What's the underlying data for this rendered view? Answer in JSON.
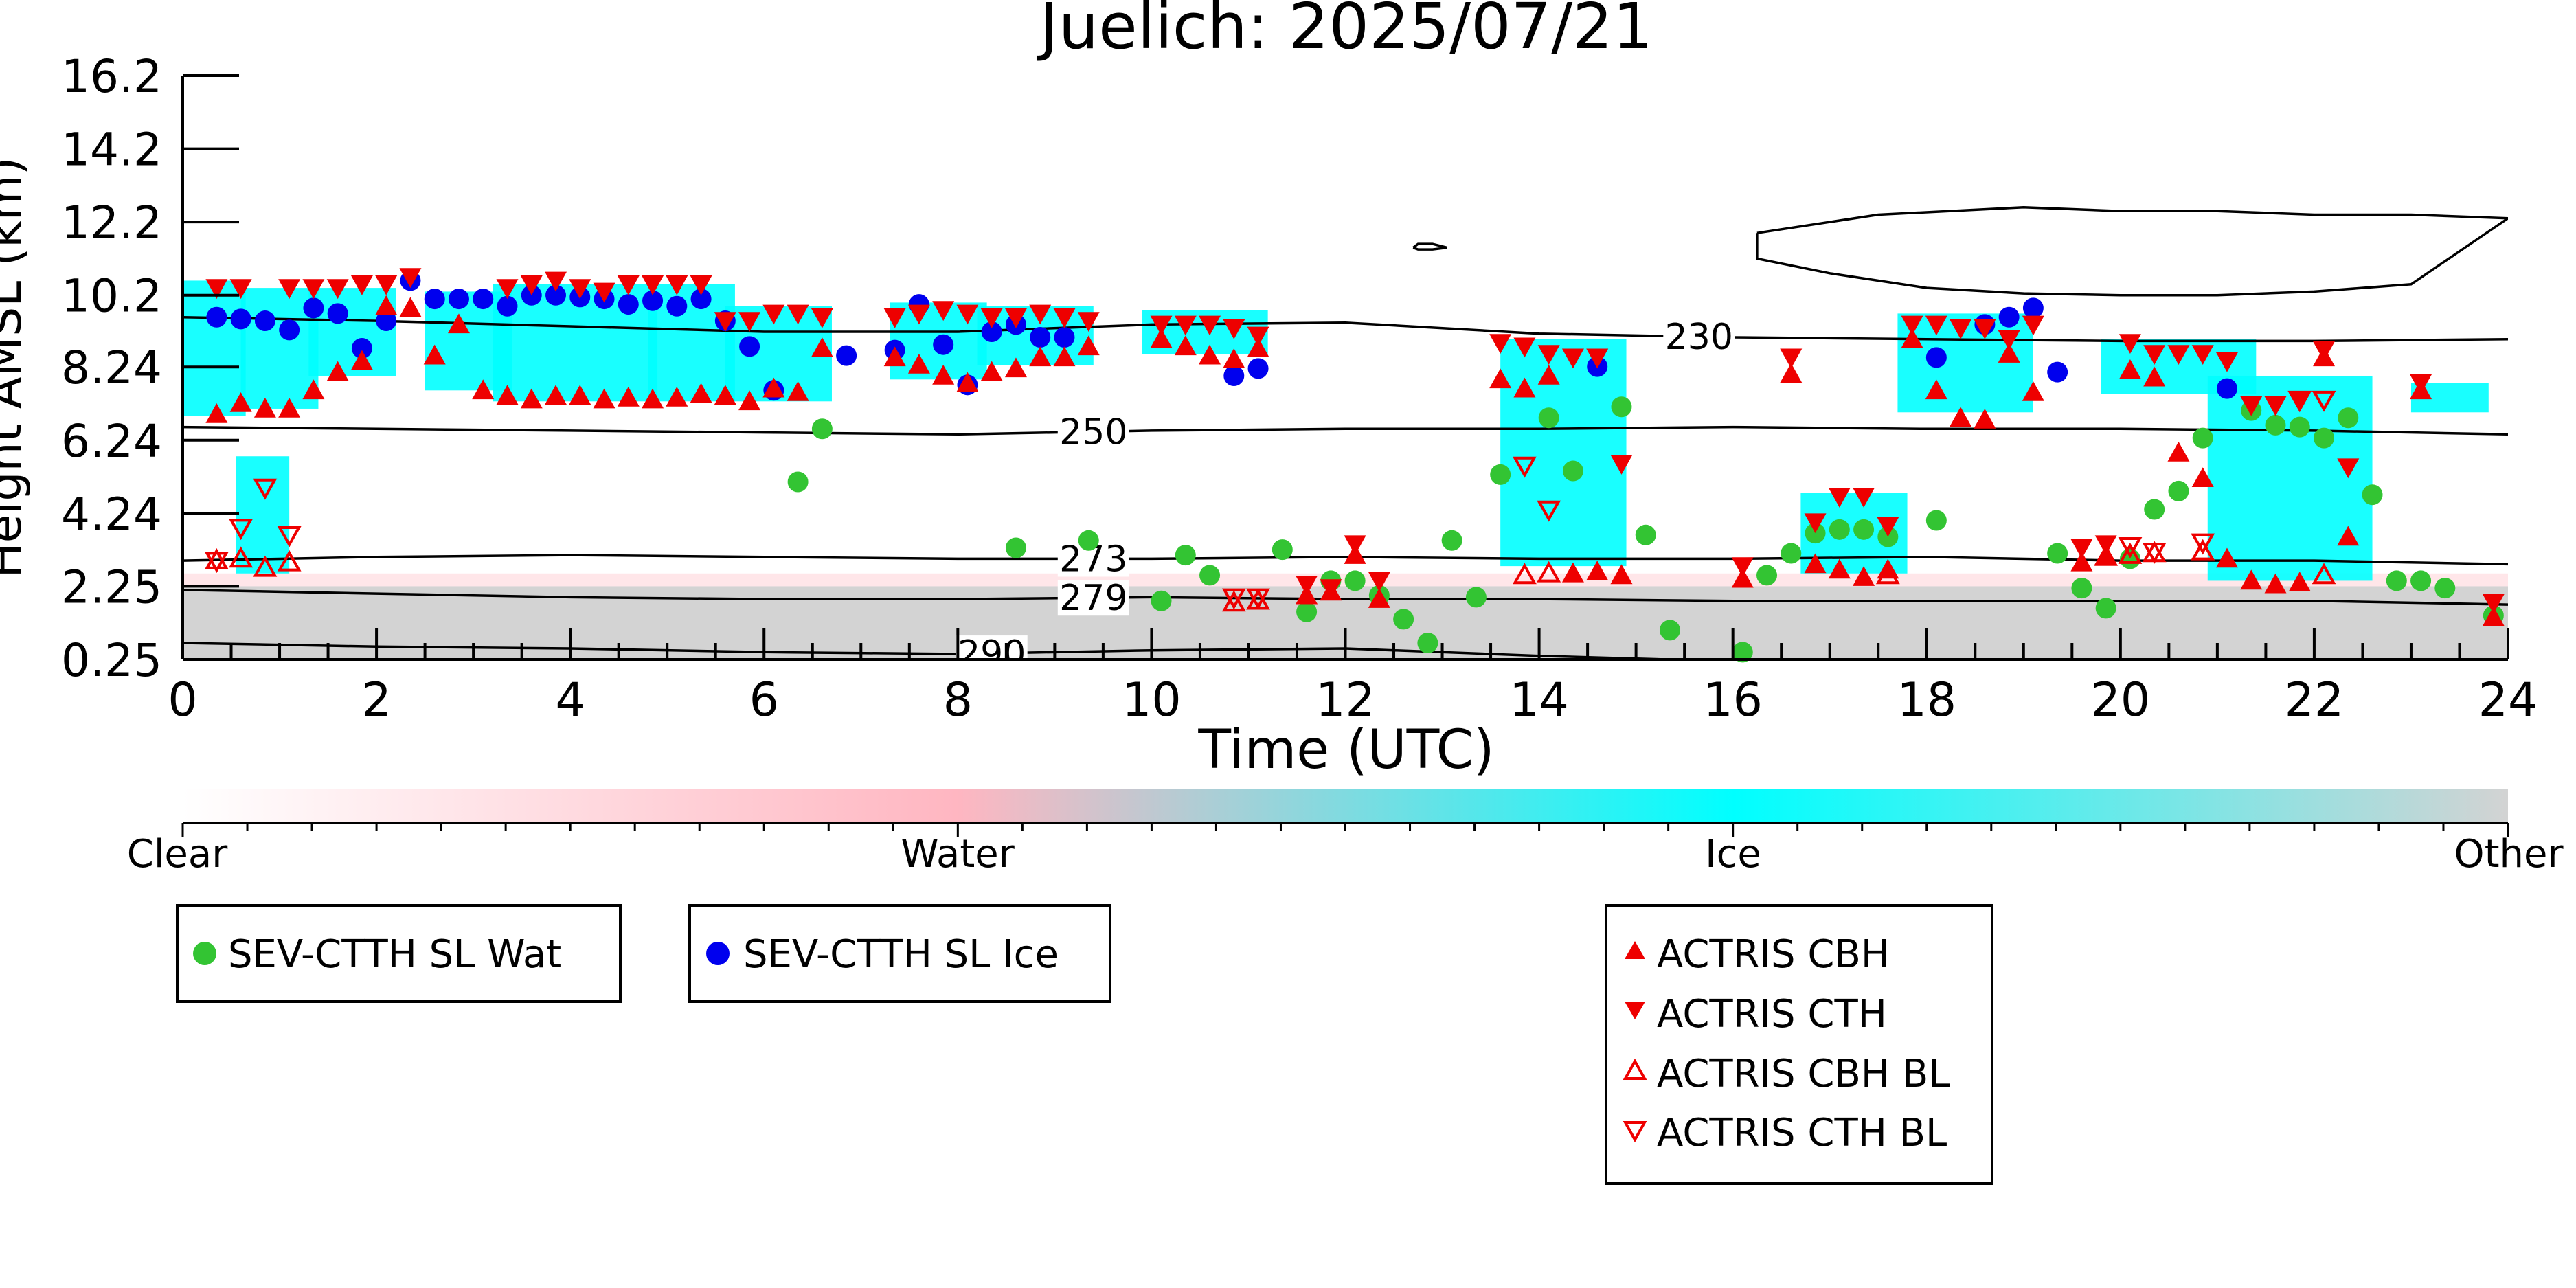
{
  "chart_data": {
    "type": "scatter",
    "title": "Juelich: 2025/07/21",
    "xlabel": "Time (UTC)",
    "ylabel": "Height AMSL (km)",
    "xlim": [
      0,
      24
    ],
    "ylim": [
      0.25,
      16.2
    ],
    "x_ticks": [
      0,
      2,
      4,
      6,
      8,
      10,
      12,
      14,
      16,
      18,
      20,
      22,
      24
    ],
    "y_ticks": [
      0.25,
      2.25,
      4.24,
      6.24,
      8.24,
      10.2,
      12.2,
      14.2,
      16.2
    ],
    "y_tick_labels": [
      "0.25",
      "2.25",
      "4.24",
      "6.24",
      "8.24",
      "10.2",
      "12.2",
      "14.2",
      "16.2"
    ],
    "background_classification": {
      "ice_regions": [
        {
          "x0": 0.0,
          "x1": 0.65,
          "y0": 6.9,
          "y1": 10.6
        },
        {
          "x0": 0.6,
          "x1": 1.4,
          "y0": 7.1,
          "y1": 10.4
        },
        {
          "x0": 1.3,
          "x1": 2.2,
          "y0": 8.0,
          "y1": 10.4
        },
        {
          "x0": 2.5,
          "x1": 3.4,
          "y0": 7.6,
          "y1": 10.3
        },
        {
          "x0": 3.2,
          "x1": 4.9,
          "y0": 7.3,
          "y1": 10.5
        },
        {
          "x0": 4.8,
          "x1": 5.7,
          "y0": 7.3,
          "y1": 10.5
        },
        {
          "x0": 5.6,
          "x1": 6.7,
          "y0": 7.3,
          "y1": 9.9
        },
        {
          "x0": 7.3,
          "x1": 8.3,
          "y0": 7.9,
          "y1": 10.0
        },
        {
          "x0": 8.2,
          "x1": 9.4,
          "y0": 8.3,
          "y1": 9.9
        },
        {
          "x0": 9.9,
          "x1": 11.2,
          "y0": 8.6,
          "y1": 9.8
        },
        {
          "x0": 13.6,
          "x1": 14.9,
          "y0": 2.8,
          "y1": 9.0
        },
        {
          "x0": 16.7,
          "x1": 17.8,
          "y0": 2.6,
          "y1": 4.8
        },
        {
          "x0": 17.7,
          "x1": 19.1,
          "y0": 7.0,
          "y1": 9.7
        },
        {
          "x0": 19.8,
          "x1": 21.4,
          "y0": 7.5,
          "y1": 9.0
        },
        {
          "x0": 20.9,
          "x1": 22.6,
          "y0": 2.4,
          "y1": 8.0
        },
        {
          "x0": 0.55,
          "x1": 1.1,
          "y0": 2.6,
          "y1": 5.8
        },
        {
          "x0": 23.0,
          "x1": 23.8,
          "y0": 7.0,
          "y1": 7.8
        }
      ],
      "other_regions": [
        {
          "x0": 0.0,
          "x1": 24.0,
          "y0": 0.25,
          "y1": 2.25
        }
      ]
    },
    "temperature_contours": [
      {
        "label": "230",
        "label_x": 15.65,
        "x": [
          0,
          2,
          4,
          6,
          8,
          10,
          12,
          14,
          16,
          18,
          20,
          22,
          24
        ],
        "y": [
          9.6,
          9.5,
          9.35,
          9.2,
          9.2,
          9.4,
          9.45,
          9.15,
          9.05,
          9.0,
          8.95,
          8.95,
          9.0
        ]
      },
      {
        "label": "250",
        "label_x": 9.4,
        "x": [
          0,
          2,
          4,
          6,
          8,
          10,
          12,
          14,
          16,
          18,
          20,
          22,
          24
        ],
        "y": [
          6.6,
          6.55,
          6.5,
          6.45,
          6.4,
          6.5,
          6.55,
          6.55,
          6.6,
          6.55,
          6.55,
          6.5,
          6.4
        ]
      },
      {
        "label": "273",
        "label_x": 9.4,
        "x": [
          0,
          2,
          4,
          6,
          8,
          10,
          12,
          14,
          16,
          18,
          20,
          22,
          24
        ],
        "y": [
          2.95,
          3.05,
          3.1,
          3.05,
          3.0,
          3.0,
          3.05,
          3.0,
          3.0,
          3.05,
          2.95,
          2.95,
          2.85
        ]
      },
      {
        "label": "279",
        "label_x": 9.4,
        "x": [
          0,
          2,
          4,
          6,
          8,
          10,
          12,
          14,
          16,
          18,
          20,
          22,
          24
        ],
        "y": [
          2.15,
          2.05,
          1.95,
          1.9,
          1.9,
          1.95,
          1.9,
          1.9,
          1.85,
          1.85,
          1.85,
          1.85,
          1.75
        ]
      },
      {
        "label": "290",
        "label_x": 8.35,
        "x": [
          0,
          2,
          4,
          6,
          8,
          10,
          12,
          14,
          16,
          18,
          20
        ],
        "y": [
          0.7,
          0.6,
          0.55,
          0.45,
          0.4,
          0.5,
          0.55,
          0.35,
          0.2,
          0.15,
          0.1
        ]
      },
      {
        "label": "",
        "label_x": null,
        "x": [
          12.7,
          12.75,
          12.9,
          13.05,
          12.9,
          12.75,
          12.7
        ],
        "y": [
          11.5,
          11.6,
          11.6,
          11.5,
          11.45,
          11.45,
          11.5
        ]
      },
      {
        "label": "",
        "label_x": null,
        "x": [
          16.25,
          17.5,
          19.0,
          20.0,
          21.0,
          22.0,
          23.0,
          24.0,
          24.0,
          23.0,
          22.0,
          21.0,
          20.0,
          19.0,
          18.0,
          17.0,
          16.25,
          16.25
        ],
        "y": [
          11.9,
          12.4,
          12.6,
          12.5,
          12.5,
          12.4,
          12.4,
          12.3,
          12.3,
          10.5,
          10.3,
          10.2,
          10.2,
          10.25,
          10.4,
          10.8,
          11.2,
          11.9
        ]
      }
    ],
    "series": [
      {
        "name": "SEV-CTTH SL Wat",
        "marker": "circle",
        "color": "#33c433",
        "x": [
          6.35,
          6.6,
          8.6,
          9.35,
          10.1,
          10.35,
          10.6,
          11.35,
          11.6,
          11.85,
          12.1,
          12.35,
          12.6,
          12.85,
          13.1,
          13.35,
          13.6,
          14.1,
          14.35,
          14.85,
          15.1,
          15.35,
          16.1,
          16.35,
          16.6,
          16.85,
          17.1,
          17.35,
          17.6,
          18.1,
          19.35,
          19.6,
          19.85,
          20.1,
          20.35,
          20.6,
          20.85,
          21.35,
          21.6,
          21.85,
          22.1,
          22.35,
          22.6,
          22.85,
          23.1,
          23.35,
          23.85
        ],
        "y": [
          5.1,
          6.55,
          3.3,
          3.5,
          1.85,
          3.1,
          2.55,
          3.25,
          1.55,
          2.4,
          2.4,
          2.0,
          1.35,
          0.7,
          3.5,
          1.95,
          5.3,
          6.85,
          5.4,
          7.15,
          3.65,
          1.05,
          0.45,
          2.55,
          3.15,
          3.7,
          3.8,
          3.8,
          3.6,
          4.05,
          3.15,
          2.2,
          1.65,
          3.0,
          4.35,
          4.85,
          6.3,
          7.05,
          6.65,
          6.6,
          6.3,
          6.85,
          4.75,
          2.4,
          2.4,
          2.2,
          1.45
        ]
      },
      {
        "name": "SEV-CTTH SL Ice",
        "marker": "circle",
        "color": "#0000ee",
        "x": [
          0.35,
          0.6,
          0.85,
          1.1,
          1.35,
          1.6,
          1.85,
          2.1,
          2.35,
          2.6,
          2.85,
          3.1,
          3.35,
          3.6,
          3.85,
          4.1,
          4.35,
          4.6,
          4.85,
          5.1,
          5.35,
          5.6,
          5.85,
          6.1,
          6.85,
          7.35,
          7.6,
          7.85,
          8.1,
          8.35,
          8.6,
          8.85,
          9.1,
          10.85,
          11.1,
          14.6,
          18.1,
          18.6,
          18.85,
          19.1,
          19.35,
          21.1
        ],
        "y": [
          9.6,
          9.55,
          9.5,
          9.25,
          9.85,
          9.7,
          8.75,
          9.5,
          10.6,
          10.1,
          10.1,
          10.1,
          9.9,
          10.2,
          10.2,
          10.15,
          10.1,
          9.95,
          10.05,
          9.9,
          10.1,
          9.5,
          8.8,
          7.6,
          8.55,
          8.7,
          9.95,
          8.85,
          7.75,
          9.2,
          9.4,
          9.05,
          9.05,
          8.0,
          8.2,
          8.25,
          8.5,
          9.4,
          9.6,
          9.85,
          8.1,
          7.65
        ]
      },
      {
        "name": "ACTRIS CBH",
        "marker": "triangle-up",
        "color": "#ee0000",
        "x": [
          0.35,
          0.6,
          0.85,
          1.1,
          1.35,
          1.6,
          1.85,
          2.1,
          2.35,
          2.6,
          2.85,
          3.1,
          3.35,
          3.6,
          3.85,
          4.1,
          4.35,
          4.6,
          4.85,
          5.1,
          5.35,
          5.6,
          5.85,
          6.1,
          6.35,
          6.6,
          7.35,
          7.6,
          7.85,
          8.1,
          8.35,
          8.6,
          8.85,
          9.1,
          9.35,
          10.1,
          10.35,
          10.6,
          10.85,
          11.1,
          11.6,
          11.85,
          12.1,
          12.35,
          13.6,
          13.85,
          14.1,
          14.35,
          14.6,
          14.85,
          16.1,
          16.6,
          16.85,
          17.1,
          17.35,
          17.6,
          17.85,
          18.1,
          18.35,
          18.6,
          18.85,
          19.1,
          19.6,
          19.85,
          20.1,
          20.35,
          20.6,
          20.85,
          21.1,
          21.35,
          21.6,
          21.85,
          22.1,
          22.35,
          23.1,
          23.85
        ],
        "y": [
          6.95,
          7.25,
          7.1,
          7.1,
          7.6,
          8.1,
          8.4,
          9.9,
          9.85,
          8.55,
          9.4,
          7.6,
          7.45,
          7.35,
          7.45,
          7.45,
          7.35,
          7.4,
          7.35,
          7.4,
          7.5,
          7.45,
          7.3,
          7.65,
          7.55,
          8.75,
          8.5,
          8.3,
          8.0,
          7.8,
          8.1,
          8.2,
          8.5,
          8.5,
          8.8,
          9.0,
          8.8,
          8.55,
          8.45,
          8.75,
          2.0,
          2.1,
          3.1,
          1.9,
          7.9,
          7.65,
          8.0,
          2.6,
          2.65,
          2.55,
          2.45,
          8.05,
          2.85,
          2.7,
          2.5,
          2.7,
          9.0,
          7.6,
          6.85,
          6.8,
          8.6,
          7.55,
          2.9,
          3.05,
          8.15,
          7.95,
          5.9,
          5.2,
          3.0,
          2.4,
          2.3,
          2.35,
          8.5,
          3.6,
          7.6,
          1.4
        ]
      },
      {
        "name": "ACTRIS CTH",
        "marker": "triangle-down",
        "color": "#ee0000",
        "x": [
          0.35,
          0.6,
          1.1,
          1.35,
          1.6,
          1.85,
          2.1,
          2.35,
          3.35,
          3.6,
          3.85,
          4.1,
          4.35,
          4.6,
          4.85,
          5.1,
          5.35,
          5.6,
          5.85,
          6.1,
          6.35,
          6.6,
          7.35,
          7.6,
          7.85,
          8.1,
          8.35,
          8.6,
          8.85,
          9.1,
          9.35,
          10.1,
          10.35,
          10.6,
          10.85,
          11.1,
          11.6,
          11.85,
          12.1,
          12.35,
          13.6,
          13.85,
          14.1,
          14.35,
          14.6,
          14.85,
          16.1,
          16.6,
          16.85,
          17.1,
          17.35,
          17.6,
          17.85,
          18.1,
          18.35,
          18.6,
          18.85,
          19.1,
          19.6,
          19.85,
          20.1,
          20.35,
          20.6,
          20.85,
          21.1,
          21.35,
          21.6,
          21.85,
          22.1,
          22.35,
          23.1,
          23.85
        ],
        "y": [
          10.4,
          10.4,
          10.4,
          10.4,
          10.4,
          10.5,
          10.5,
          10.7,
          10.4,
          10.5,
          10.6,
          10.4,
          10.3,
          10.5,
          10.5,
          10.5,
          10.5,
          9.5,
          9.5,
          9.7,
          9.7,
          9.6,
          9.6,
          9.7,
          9.8,
          9.7,
          9.6,
          9.6,
          9.7,
          9.6,
          9.5,
          9.4,
          9.4,
          9.4,
          9.3,
          9.1,
          2.3,
          2.2,
          3.4,
          2.4,
          8.9,
          8.8,
          8.6,
          8.5,
          8.5,
          5.6,
          2.8,
          8.5,
          4.0,
          4.7,
          4.7,
          3.9,
          9.4,
          9.4,
          9.3,
          9.3,
          9.0,
          9.4,
          3.3,
          3.4,
          8.9,
          8.6,
          8.6,
          8.6,
          8.4,
          7.2,
          7.2,
          7.3,
          8.7,
          5.5,
          7.8,
          1.8
        ]
      },
      {
        "name": "ACTRIS CBH BL",
        "marker": "triangle-up-open",
        "color": "#ee0000",
        "x": [
          0.35,
          0.6,
          0.85,
          1.1,
          10.85,
          11.1,
          13.85,
          14.1,
          17.6,
          19.85,
          20.1,
          20.35,
          20.85,
          22.1
        ],
        "y": [
          2.95,
          3.0,
          2.75,
          2.9,
          1.8,
          1.85,
          2.55,
          2.6,
          2.55,
          3.05,
          3.1,
          3.15,
          3.2,
          2.55
        ]
      },
      {
        "name": "ACTRIS CTH BL",
        "marker": "triangle-down-open",
        "color": "#ee0000",
        "x": [
          0.35,
          0.6,
          0.85,
          1.1,
          10.85,
          11.1,
          13.85,
          14.1,
          20.1,
          20.35,
          20.85,
          21.85,
          22.1
        ],
        "y": [
          2.95,
          3.85,
          4.95,
          3.65,
          1.95,
          1.95,
          5.55,
          4.35,
          3.35,
          3.2,
          3.45,
          7.35,
          7.35
        ]
      }
    ],
    "colorbar": {
      "labels": [
        "Clear",
        "Water",
        "Ice",
        "Other"
      ],
      "colors": [
        "#ffffff",
        "#ffb6c1",
        "#00ffff",
        "#d3d3d3"
      ]
    },
    "legend_left": [
      "SEV-CTTH SL Wat",
      "SEV-CTTH SL Ice"
    ],
    "legend_right": [
      "ACTRIS CBH",
      "ACTRIS CTH",
      "ACTRIS CBH BL",
      "ACTRIS CTH BL"
    ],
    "grid": false
  }
}
